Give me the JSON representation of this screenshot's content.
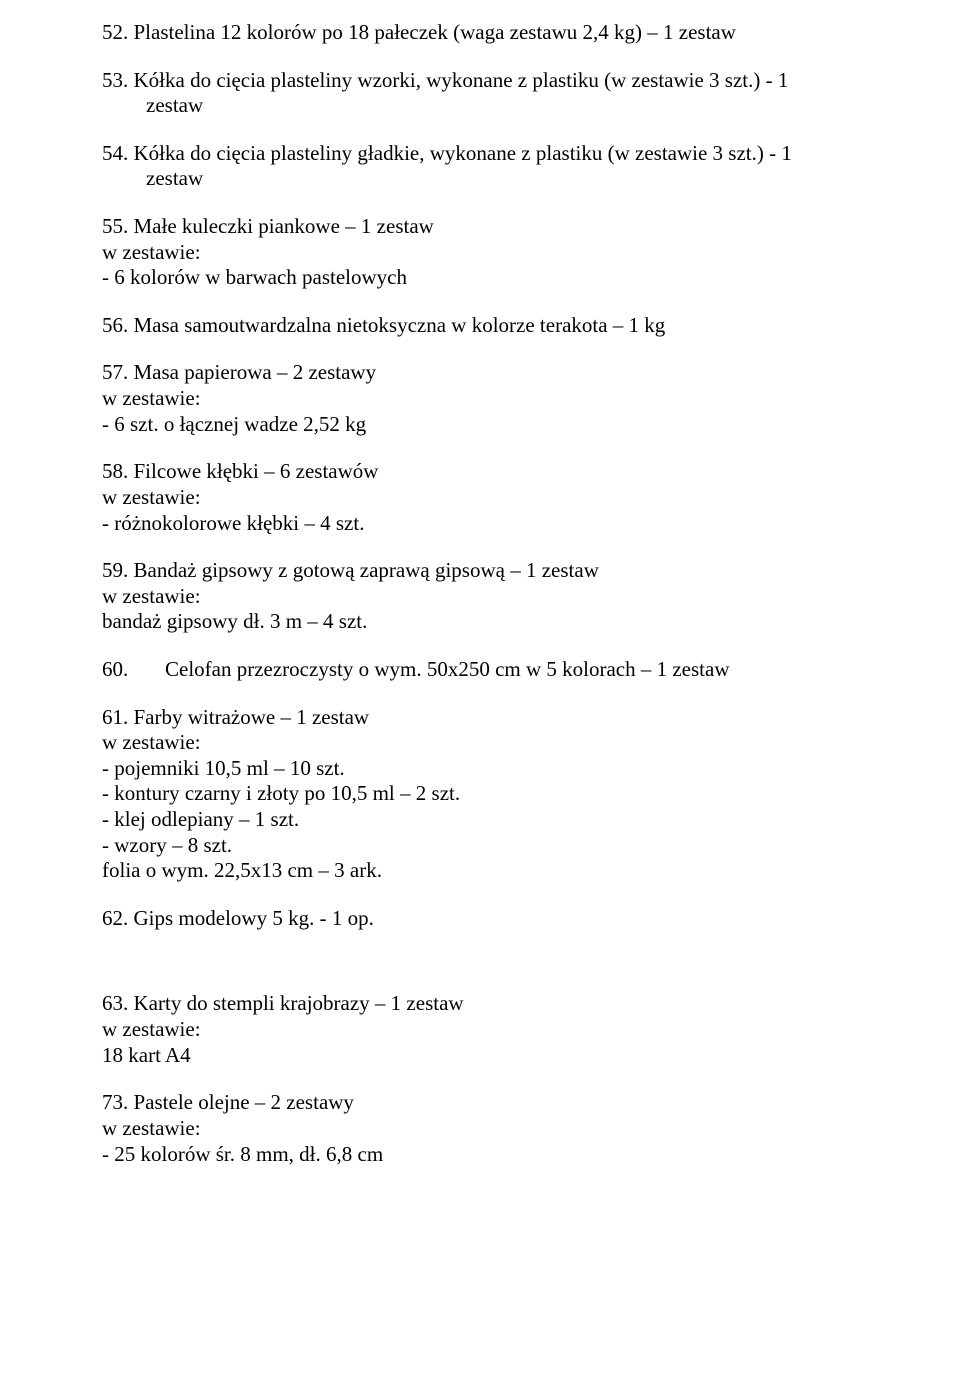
{
  "i52": {
    "title": "52. Plastelina 12 kolorów po 18 pałeczek (waga zestawu 2,4 kg) – 1 zestaw"
  },
  "i53": {
    "title_l1": "53. Kółka do cięcia plasteliny wzorki, wykonane z plastiku (w zestawie 3 szt.) - 1",
    "title_l2": "zestaw"
  },
  "i54": {
    "title_l1": "54. Kółka do cięcia plasteliny gładkie, wykonane z plastiku (w zestawie 3 szt.) - 1",
    "title_l2": "zestaw"
  },
  "i55": {
    "title": "55. Małe kuleczki piankowe – 1 zestaw",
    "sub1": "w zestawie:",
    "sub2": "- 6 kolorów w barwach pastelowych"
  },
  "i56": {
    "title": "56. Masa samoutwardzalna nietoksyczna w kolorze terakota – 1 kg"
  },
  "i57": {
    "title": "57. Masa papierowa – 2 zestawy",
    "sub1": "w zestawie:",
    "sub2": "- 6 szt. o łącznej wadze 2,52 kg"
  },
  "i58": {
    "title": "58. Filcowe kłębki – 6 zestawów",
    "sub1": "w zestawie:",
    "sub2": "- różnokolorowe kłębki – 4 szt."
  },
  "i59": {
    "title": "59. Bandaż gipsowy z gotową zaprawą gipsową – 1 zestaw",
    "sub1": "w zestawie:",
    "sub2": "bandaż gipsowy dł. 3 m – 4 szt."
  },
  "i60": {
    "num": "60.",
    "title": "Celofan przezroczysty o wym. 50x250 cm w 5 kolorach – 1 zestaw"
  },
  "i61": {
    "title": "61. Farby witrażowe – 1 zestaw",
    "sub1": "w zestawie:",
    "sub2": "- pojemniki 10,5 ml – 10 szt.",
    "sub3": "- kontury czarny i złoty po 10,5 ml – 2 szt.",
    "sub4": "- klej odlepiany – 1 szt.",
    "sub5": "- wzory – 8 szt.",
    "sub6": "folia o wym. 22,5x13 cm – 3 ark."
  },
  "i62": {
    "title": "62. Gips modelowy 5 kg. - 1 op."
  },
  "i63": {
    "title": "63. Karty do stempli krajobrazy – 1 zestaw",
    "sub1": "w zestawie:",
    "sub2": "18 kart A4"
  },
  "i73": {
    "title": "73. Pastele olejne – 2 zestawy",
    "sub1": "w zestawie:",
    "sub2": "- 25 kolorów śr. 8 mm, dł. 6,8 cm"
  }
}
